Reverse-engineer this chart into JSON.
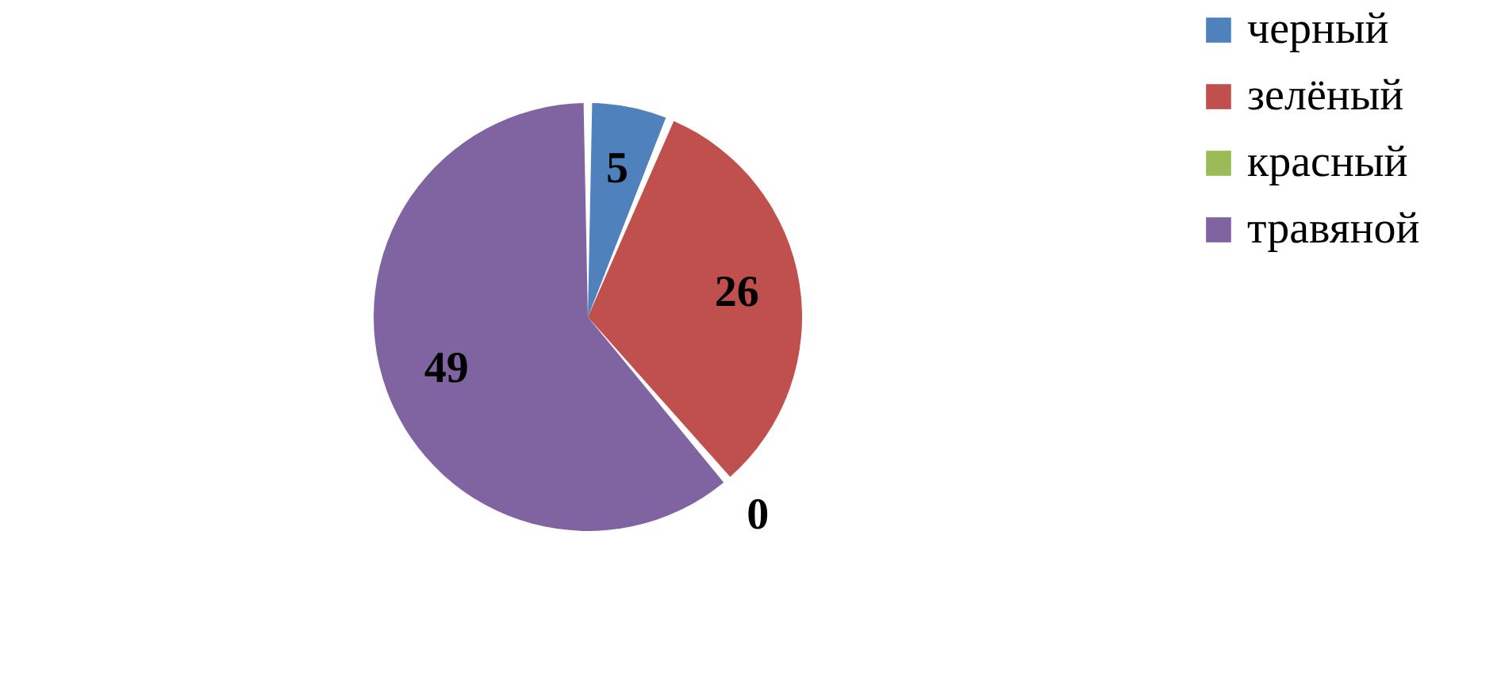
{
  "chart_data": {
    "type": "pie",
    "categories": [
      "черный",
      "зелёный",
      "красный",
      "травяной"
    ],
    "values": [
      5,
      26,
      0,
      49
    ],
    "colors": [
      "#4f81bd",
      "#c0504d",
      "#9bbb59",
      "#8064a2"
    ],
    "value_labels": [
      "5",
      "26",
      "0",
      "49"
    ],
    "legend": "right"
  }
}
